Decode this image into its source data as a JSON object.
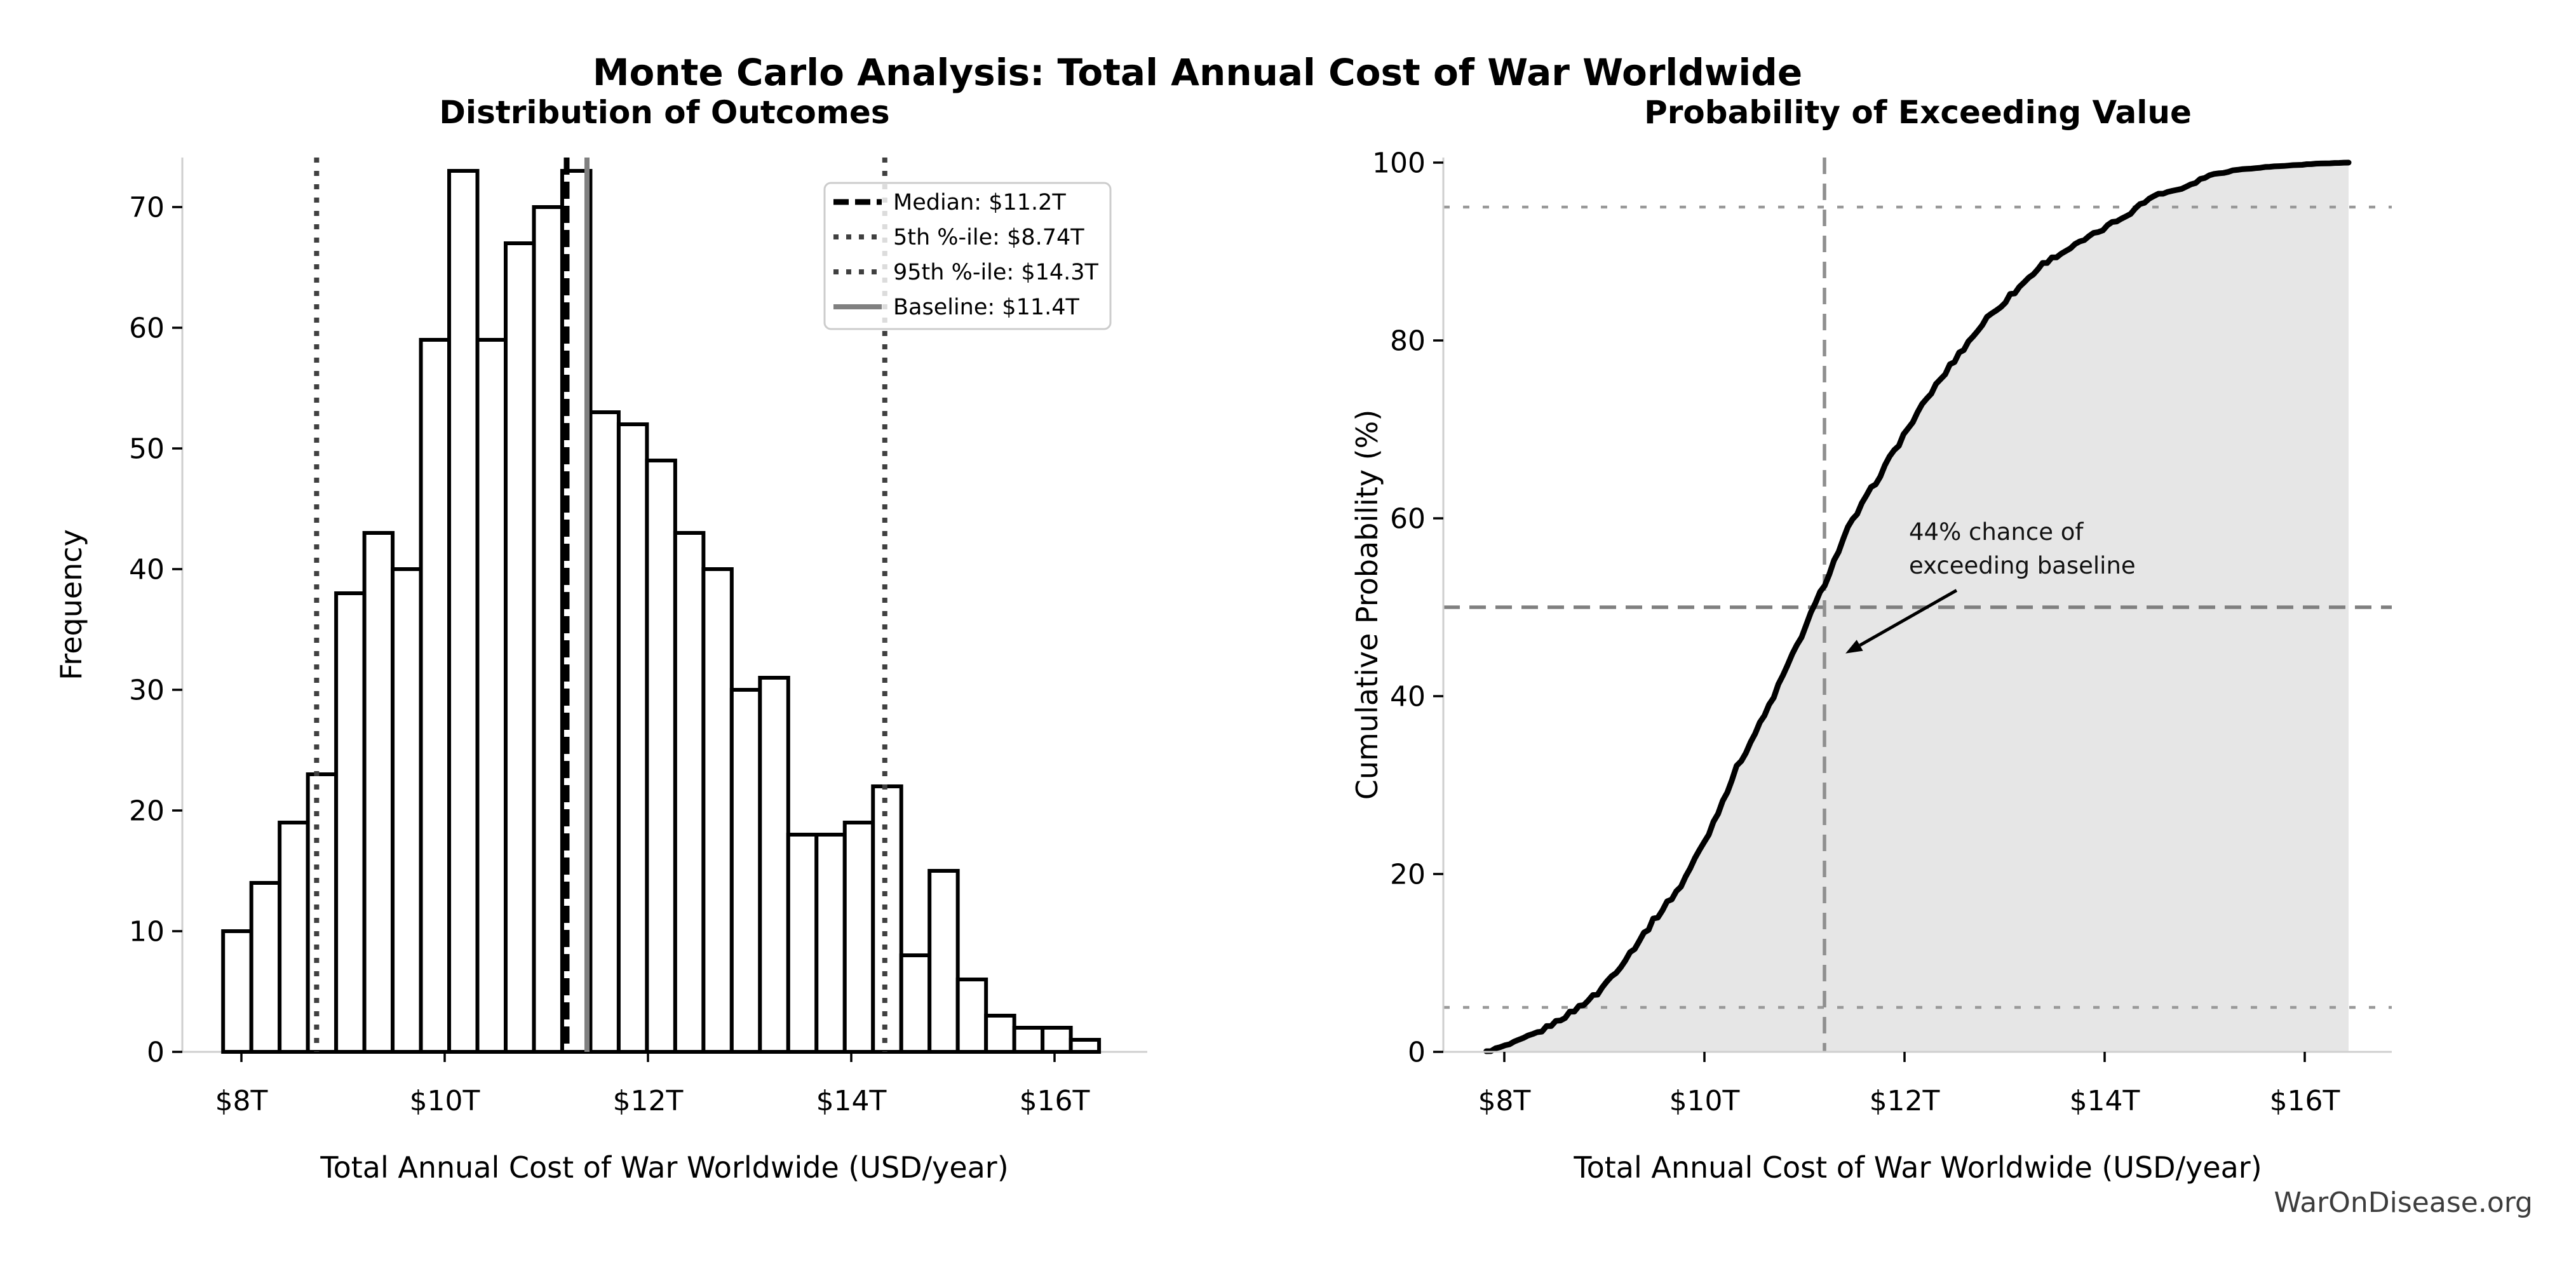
{
  "suptitle": "Monte Carlo Analysis: Total Annual Cost of War Worldwide",
  "watermark": "WarOnDisease.org",
  "chart_data": [
    {
      "type": "bar",
      "role": "histogram",
      "title": "Distribution of Outcomes",
      "xlabel": "Total Annual Cost of War Worldwide (USD/year)",
      "ylabel": "Frequency",
      "bar_fill": "#ffffff",
      "bar_edge": "#000000",
      "bin_start": 7.82,
      "bin_width": 0.278,
      "frequencies": [
        10,
        14,
        19,
        23,
        38,
        43,
        40,
        59,
        73,
        59,
        67,
        70,
        73,
        53,
        52,
        49,
        43,
        40,
        30,
        31,
        18,
        18,
        19,
        22,
        8,
        15,
        6,
        3,
        2,
        2,
        1
      ],
      "x_ticks": [
        {
          "value": 8,
          "label": "$8T"
        },
        {
          "value": 10,
          "label": "$10T"
        },
        {
          "value": 12,
          "label": "$12T"
        },
        {
          "value": 14,
          "label": "$14T"
        },
        {
          "value": 16,
          "label": "$16T"
        }
      ],
      "y_ticks": [
        0,
        10,
        20,
        30,
        40,
        50,
        60,
        70
      ],
      "xlim": [
        7.39,
        16.87
      ],
      "ylim": [
        0,
        74.2
      ],
      "grid": false,
      "legend_position": "upper right",
      "reference_lines": [
        {
          "name": "median",
          "value": 11.2,
          "label": "Median: $11.2T",
          "style": "dashed",
          "color": "#000000"
        },
        {
          "name": "p5",
          "value": 8.74,
          "label": "5th %-ile: $8.74T",
          "style": "dotted",
          "color": "#404040"
        },
        {
          "name": "p95",
          "value": 14.33,
          "label": "95th %-ile: $14.3T",
          "style": "dotted",
          "color": "#404040"
        },
        {
          "name": "baseline",
          "value": 11.4,
          "label": "Baseline: $11.4T",
          "style": "solid",
          "color": "#808080"
        }
      ]
    },
    {
      "type": "line",
      "role": "cdf",
      "title": "Probability of Exceeding Value",
      "xlabel": "Total Annual Cost of War Worldwide (USD/year)",
      "ylabel": "Cumulative Probability (%)",
      "line_color": "#000000",
      "fill": true,
      "fill_color": "#e6e6e6",
      "x": [
        7.82,
        8.098,
        8.376,
        8.654,
        8.932,
        9.21,
        9.488,
        9.766,
        10.044,
        10.322,
        10.6,
        10.878,
        11.156,
        11.434,
        11.712,
        11.99,
        12.268,
        12.546,
        12.824,
        13.102,
        13.38,
        13.658,
        13.936,
        14.214,
        14.492,
        14.77,
        15.048,
        15.326,
        15.604,
        15.882,
        16.16,
        16.438
      ],
      "y": [
        0,
        1.0,
        2.4,
        4.3,
        6.6,
        10.4,
        14.7,
        18.7,
        24.6,
        31.9,
        37.8,
        44.5,
        51.5,
        58.8,
        64.1,
        69.3,
        74.2,
        78.5,
        82.5,
        85.5,
        88.6,
        90.4,
        92.2,
        94.1,
        96.3,
        97.1,
        98.6,
        99.2,
        99.5,
        99.7,
        99.9,
        100
      ],
      "x_ticks": [
        {
          "value": 8,
          "label": "$8T"
        },
        {
          "value": 10,
          "label": "$10T"
        },
        {
          "value": 12,
          "label": "$12T"
        },
        {
          "value": 14,
          "label": "$14T"
        },
        {
          "value": 16,
          "label": "$16T"
        }
      ],
      "y_ticks": [
        0,
        20,
        40,
        60,
        80,
        100
      ],
      "xlim": [
        7.39,
        16.87
      ],
      "ylim": [
        0,
        100
      ],
      "grid": false,
      "reference_lines": [
        {
          "orientation": "horizontal",
          "value": 5,
          "style": "dotted",
          "color": "#999999"
        },
        {
          "orientation": "horizontal",
          "value": 95,
          "style": "dotted",
          "color": "#999999"
        },
        {
          "orientation": "horizontal",
          "value": 50,
          "style": "dashed",
          "color": "#7f7f7f"
        },
        {
          "orientation": "vertical",
          "value": 11.2,
          "style": "dashed",
          "color": "#8f8f8f"
        }
      ],
      "annotation": {
        "text": "44% chance of\nexceeding baseline",
        "text_xy": [
          12.2,
          58.5
        ],
        "arrow_from": [
          12.52,
          51.9
        ],
        "arrow_to": [
          11.41,
          44.8
        ]
      }
    }
  ]
}
